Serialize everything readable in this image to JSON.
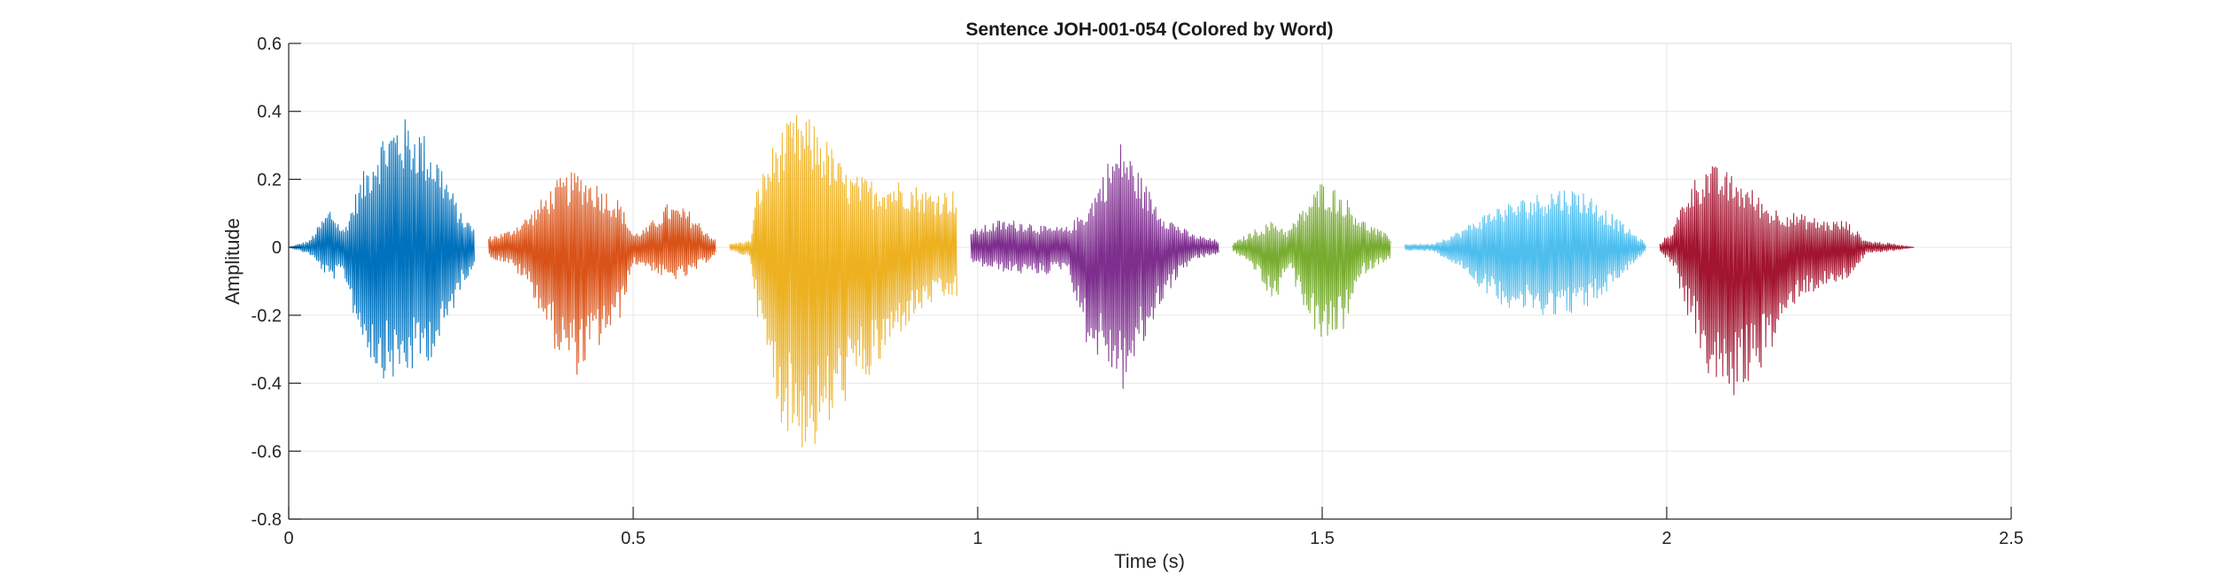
{
  "chart_data": {
    "type": "line",
    "title": "Sentence JOH-001-054 (Colored by Word)",
    "xlabel": "Time (s)",
    "ylabel": "Amplitude",
    "xlim": [
      0,
      2.5
    ],
    "ylim": [
      -0.8,
      0.6
    ],
    "xticks": [
      0,
      0.5,
      1,
      1.5,
      2,
      2.5
    ],
    "xtick_labels": [
      "0",
      "0.5",
      "1",
      "1.5",
      "2",
      "2.5"
    ],
    "yticks": [
      -0.8,
      -0.6,
      -0.4,
      -0.2,
      0,
      0.2,
      0.4,
      0.6
    ],
    "ytick_labels": [
      "-0.8",
      "-0.6",
      "-0.4",
      "-0.2",
      "0",
      "0.2",
      "0.4",
      "0.6"
    ],
    "grid": true,
    "series": [
      {
        "color": "#0072BD",
        "start": 0.0,
        "end": 0.27,
        "envelope": [
          [
            0.0,
            0.0,
            0.0
          ],
          [
            0.03,
            0.02,
            -0.02
          ],
          [
            0.06,
            0.12,
            -0.1
          ],
          [
            0.08,
            0.05,
            -0.08
          ],
          [
            0.1,
            0.18,
            -0.25
          ],
          [
            0.13,
            0.33,
            -0.38
          ],
          [
            0.16,
            0.39,
            -0.4
          ],
          [
            0.19,
            0.36,
            -0.36
          ],
          [
            0.22,
            0.26,
            -0.3
          ],
          [
            0.25,
            0.1,
            -0.12
          ],
          [
            0.27,
            0.06,
            -0.05
          ]
        ]
      },
      {
        "color": "#D95319",
        "start": 0.29,
        "end": 0.62,
        "envelope": [
          [
            0.29,
            0.03,
            -0.03
          ],
          [
            0.32,
            0.05,
            -0.05
          ],
          [
            0.35,
            0.1,
            -0.12
          ],
          [
            0.39,
            0.2,
            -0.32
          ],
          [
            0.42,
            0.23,
            -0.38
          ],
          [
            0.45,
            0.19,
            -0.3
          ],
          [
            0.48,
            0.14,
            -0.22
          ],
          [
            0.5,
            0.04,
            -0.05
          ],
          [
            0.52,
            0.06,
            -0.06
          ],
          [
            0.55,
            0.13,
            -0.1
          ],
          [
            0.58,
            0.11,
            -0.09
          ],
          [
            0.62,
            0.02,
            -0.02
          ]
        ]
      },
      {
        "color": "#EDB120",
        "start": 0.64,
        "end": 0.97,
        "envelope": [
          [
            0.64,
            0.01,
            -0.01
          ],
          [
            0.67,
            0.02,
            -0.03
          ],
          [
            0.68,
            0.18,
            -0.2
          ],
          [
            0.71,
            0.34,
            -0.5
          ],
          [
            0.74,
            0.4,
            -0.6
          ],
          [
            0.77,
            0.36,
            -0.6
          ],
          [
            0.81,
            0.22,
            -0.45
          ],
          [
            0.85,
            0.2,
            -0.38
          ],
          [
            0.89,
            0.2,
            -0.25
          ],
          [
            0.93,
            0.17,
            -0.17
          ],
          [
            0.97,
            0.17,
            -0.15
          ]
        ]
      },
      {
        "color": "#7E2F8E",
        "start": 0.99,
        "end": 1.35,
        "envelope": [
          [
            0.99,
            0.05,
            -0.05
          ],
          [
            1.03,
            0.08,
            -0.07
          ],
          [
            1.07,
            0.08,
            -0.08
          ],
          [
            1.1,
            0.06,
            -0.08
          ],
          [
            1.13,
            0.06,
            -0.06
          ],
          [
            1.16,
            0.12,
            -0.3
          ],
          [
            1.19,
            0.26,
            -0.36
          ],
          [
            1.21,
            0.32,
            -0.43
          ],
          [
            1.24,
            0.2,
            -0.3
          ],
          [
            1.27,
            0.1,
            -0.15
          ],
          [
            1.31,
            0.04,
            -0.04
          ],
          [
            1.35,
            0.02,
            -0.02
          ]
        ]
      },
      {
        "color": "#77AC30",
        "start": 1.37,
        "end": 1.6,
        "envelope": [
          [
            1.37,
            0.01,
            -0.01
          ],
          [
            1.4,
            0.05,
            -0.06
          ],
          [
            1.43,
            0.08,
            -0.18
          ],
          [
            1.45,
            0.05,
            -0.06
          ],
          [
            1.47,
            0.11,
            -0.16
          ],
          [
            1.5,
            0.2,
            -0.3
          ],
          [
            1.53,
            0.16,
            -0.25
          ],
          [
            1.56,
            0.08,
            -0.08
          ],
          [
            1.6,
            0.03,
            -0.03
          ]
        ]
      },
      {
        "color": "#4DBEEE",
        "start": 1.62,
        "end": 1.97,
        "envelope": [
          [
            1.62,
            0.01,
            -0.01
          ],
          [
            1.66,
            0.01,
            -0.01
          ],
          [
            1.7,
            0.05,
            -0.06
          ],
          [
            1.75,
            0.12,
            -0.16
          ],
          [
            1.8,
            0.15,
            -0.2
          ],
          [
            1.84,
            0.18,
            -0.2
          ],
          [
            1.88,
            0.17,
            -0.19
          ],
          [
            1.92,
            0.1,
            -0.12
          ],
          [
            1.97,
            0.01,
            -0.01
          ]
        ]
      },
      {
        "color": "#A2142F",
        "start": 1.99,
        "end": 2.36,
        "envelope": [
          [
            1.99,
            0.01,
            -0.01
          ],
          [
            2.01,
            0.06,
            -0.06
          ],
          [
            2.03,
            0.18,
            -0.2
          ],
          [
            2.06,
            0.25,
            -0.38
          ],
          [
            2.09,
            0.22,
            -0.46
          ],
          [
            2.12,
            0.18,
            -0.4
          ],
          [
            2.15,
            0.12,
            -0.32
          ],
          [
            2.19,
            0.1,
            -0.15
          ],
          [
            2.23,
            0.08,
            -0.12
          ],
          [
            2.26,
            0.08,
            -0.1
          ],
          [
            2.29,
            0.02,
            -0.02
          ],
          [
            2.33,
            0.01,
            -0.01
          ],
          [
            2.36,
            0.0,
            0.0
          ]
        ]
      }
    ]
  }
}
